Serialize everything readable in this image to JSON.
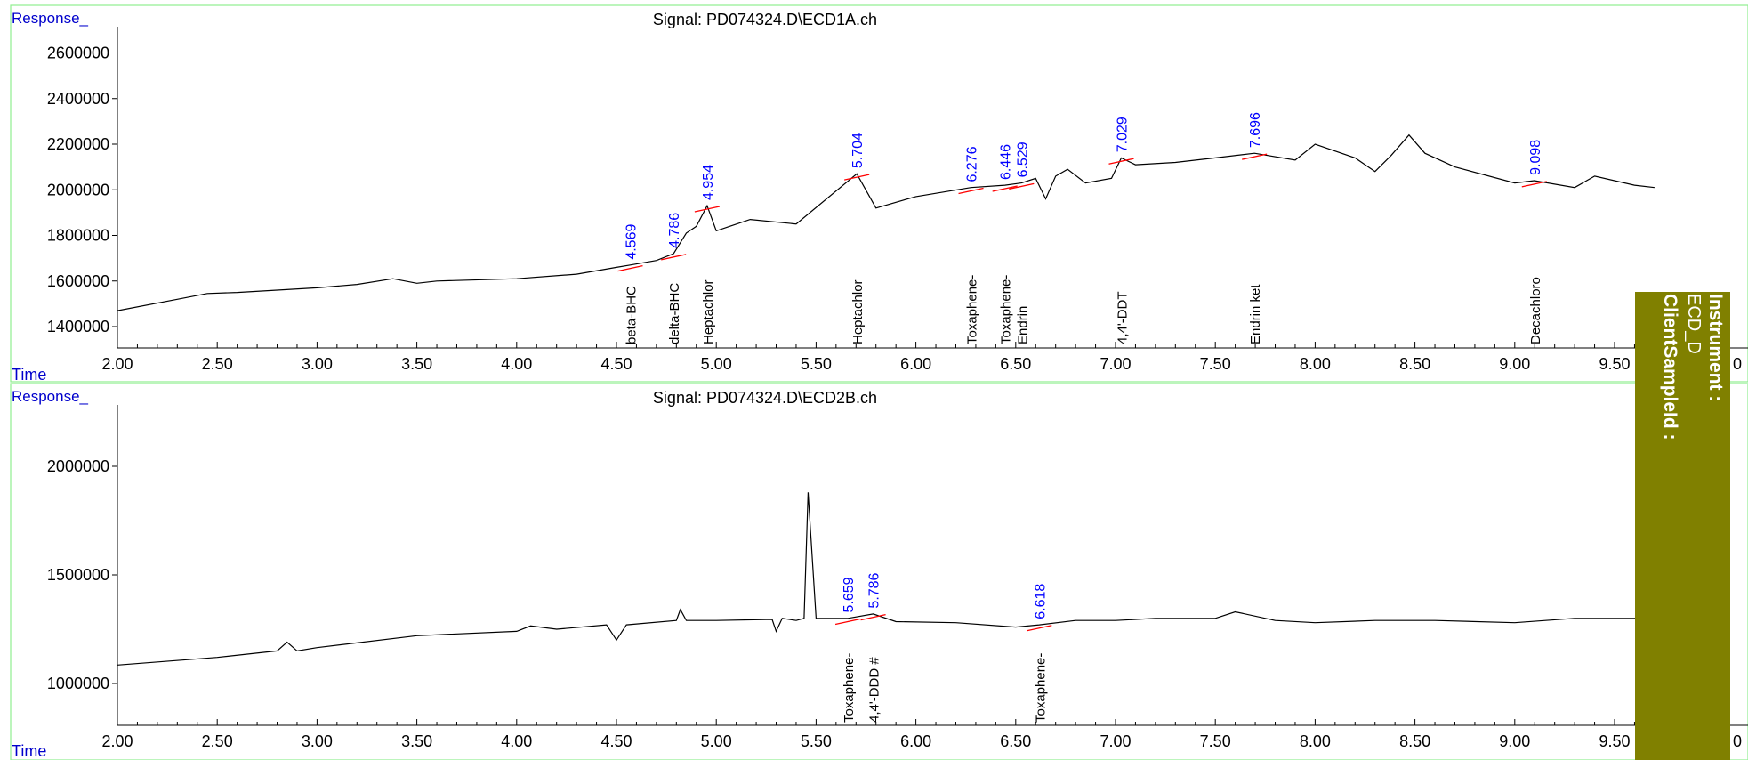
{
  "panels": [
    {
      "response_label": "Response_",
      "time_label": "Time",
      "signal_title": "Signal: PD074324.D\\ECD1A.ch",
      "y_ticks": [
        "2600000",
        "2400000",
        "2200000",
        "2000000",
        "1800000",
        "1600000",
        "1400000"
      ],
      "x_ticks": [
        "2.00",
        "2.50",
        "3.00",
        "3.50",
        "4.00",
        "4.50",
        "5.00",
        "5.50",
        "6.00",
        "6.50",
        "7.00",
        "7.50",
        "8.00",
        "8.50",
        "9.00",
        "9.50",
        "0"
      ]
    },
    {
      "response_label": "Response_",
      "time_label": "Time",
      "signal_title": "Signal: PD074324.D\\ECD2B.ch",
      "y_ticks": [
        "2000000",
        "1500000",
        "1000000"
      ],
      "x_ticks": [
        "2.00",
        "2.50",
        "3.00",
        "3.50",
        "4.00",
        "4.50",
        "5.00",
        "5.50",
        "6.00",
        "6.50",
        "7.00",
        "7.50",
        "8.00",
        "8.50",
        "9.00",
        "9.50",
        "0"
      ]
    }
  ],
  "side_panel": {
    "instrument_label": "Instrument :",
    "instrument_value": "ECD_D",
    "client_label": "ClientSampleId :",
    "background": "#808000"
  },
  "colors": {
    "frame": "#90ee90",
    "axis_text": "#0000cc",
    "trace": "#000000",
    "baseline": "#ff0000",
    "peak_label": "#0000ff"
  },
  "chart_data": [
    {
      "type": "line",
      "title": "Signal: PD074324.D\\ECD1A.ch",
      "xlabel": "Time",
      "ylabel": "Response_",
      "xlim": [
        2.0,
        9.7
      ],
      "ylim": [
        1300000,
        2700000
      ],
      "series": [
        {
          "x": [
            2.0,
            2.3,
            2.45,
            2.6,
            2.8,
            3.0,
            3.2,
            3.38,
            3.5,
            3.6,
            4.0,
            4.3,
            4.5,
            4.569,
            4.7,
            4.786,
            4.85,
            4.9,
            4.954,
            5.0,
            5.17,
            5.4,
            5.704,
            5.8,
            6.0,
            6.276,
            6.446,
            6.529,
            6.6,
            6.65,
            6.7,
            6.76,
            6.85,
            6.98,
            7.029,
            7.1,
            7.3,
            7.5,
            7.696,
            7.9,
            8.0,
            8.2,
            8.3,
            8.38,
            8.47,
            8.55,
            8.7,
            9.0,
            9.098,
            9.3,
            9.4,
            9.6,
            9.7
          ],
          "y": [
            1470000,
            1520000,
            1545000,
            1550000,
            1560000,
            1570000,
            1585000,
            1610000,
            1590000,
            1600000,
            1610000,
            1630000,
            1660000,
            1670000,
            1690000,
            1720000,
            1810000,
            1840000,
            1930000,
            1820000,
            1870000,
            1850000,
            2070000,
            1920000,
            1970000,
            2010000,
            2020000,
            2030000,
            2050000,
            1960000,
            2060000,
            2090000,
            2030000,
            2050000,
            2140000,
            2110000,
            2120000,
            2140000,
            2160000,
            2130000,
            2200000,
            2140000,
            2080000,
            2150000,
            2240000,
            2160000,
            2100000,
            2030000,
            2040000,
            2010000,
            2060000,
            2020000,
            2010000
          ]
        }
      ],
      "peaks": [
        {
          "rt": 4.569,
          "label": "4.569",
          "compound": "beta-BHC"
        },
        {
          "rt": 4.786,
          "label": "4.786",
          "compound": "delta-BHC"
        },
        {
          "rt": 4.954,
          "label": "4.954",
          "compound": "Heptachlor"
        },
        {
          "rt": 5.704,
          "label": "5.704",
          "compound": "Heptachlor"
        },
        {
          "rt": 6.276,
          "label": "6.276",
          "compound": "Toxaphene-"
        },
        {
          "rt": 6.446,
          "label": "6.446",
          "compound": "Toxaphene-"
        },
        {
          "rt": 6.529,
          "label": "6.529",
          "compound": "Endrin"
        },
        {
          "rt": 7.029,
          "label": "7.029",
          "compound": "4,4'-DDT"
        },
        {
          "rt": 7.696,
          "label": "7.696",
          "compound": "Endrin ket"
        },
        {
          "rt": 9.098,
          "label": "9.098",
          "compound": "Decachloro"
        }
      ]
    },
    {
      "type": "line",
      "title": "Signal: PD074324.D\\ECD2B.ch",
      "xlabel": "Time",
      "ylabel": "Response_",
      "xlim": [
        2.0,
        9.7
      ],
      "ylim": [
        800000,
        2250000
      ],
      "series": [
        {
          "x": [
            2.0,
            2.5,
            2.8,
            2.85,
            2.9,
            3.0,
            3.5,
            4.0,
            4.07,
            4.2,
            4.45,
            4.5,
            4.55,
            4.8,
            4.82,
            4.85,
            5.0,
            5.28,
            5.3,
            5.33,
            5.4,
            5.44,
            5.46,
            5.5,
            5.659,
            5.786,
            5.9,
            6.2,
            6.5,
            6.618,
            6.8,
            7.0,
            7.2,
            7.5,
            7.6,
            7.8,
            8.0,
            8.3,
            8.6,
            9.0,
            9.3,
            9.6,
            9.7
          ],
          "y": [
            1085000,
            1120000,
            1150000,
            1190000,
            1150000,
            1165000,
            1220000,
            1240000,
            1265000,
            1250000,
            1270000,
            1200000,
            1270000,
            1290000,
            1340000,
            1290000,
            1290000,
            1295000,
            1240000,
            1300000,
            1290000,
            1300000,
            1880000,
            1300000,
            1300000,
            1320000,
            1285000,
            1280000,
            1260000,
            1270000,
            1290000,
            1290000,
            1300000,
            1300000,
            1330000,
            1290000,
            1280000,
            1290000,
            1290000,
            1280000,
            1300000,
            1300000,
            1310000
          ]
        }
      ],
      "peaks": [
        {
          "rt": 5.659,
          "label": "5.659",
          "compound": "Toxaphene-"
        },
        {
          "rt": 5.786,
          "label": "5.786",
          "compound": "4,4'-DDD #"
        },
        {
          "rt": 6.618,
          "label": "6.618",
          "compound": "Toxaphene-"
        }
      ]
    }
  ]
}
